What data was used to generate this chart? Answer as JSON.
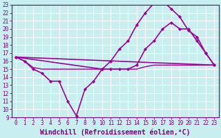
{
  "title": "",
  "xlabel": "Windchill (Refroidissement éolien,°C)",
  "ylabel": "",
  "xlim": [
    -0.5,
    23.5
  ],
  "ylim": [
    9,
    23
  ],
  "yticks": [
    9,
    10,
    11,
    12,
    13,
    14,
    15,
    16,
    17,
    18,
    19,
    20,
    21,
    22,
    23
  ],
  "xticks": [
    0,
    1,
    2,
    3,
    4,
    5,
    6,
    7,
    8,
    9,
    10,
    11,
    12,
    13,
    14,
    15,
    16,
    17,
    18,
    19,
    20,
    21,
    22,
    23
  ],
  "bg_color": "#c8eef0",
  "line_color": "#9b0097",
  "grid_color": "#ffffff",
  "lines": [
    {
      "x": [
        0,
        1,
        2,
        3,
        4,
        5,
        6,
        7,
        8,
        9,
        10,
        11,
        12,
        13,
        14,
        15,
        16,
        17,
        18,
        19,
        20,
        21,
        22,
        23
      ],
      "y": [
        16.5,
        16.0,
        15.2,
        15.0,
        15.0,
        15.0,
        15.0,
        15.0,
        15.0,
        15.0,
        15.0,
        15.0,
        15.0,
        15.0,
        15.0,
        15.3,
        15.5,
        15.5,
        15.5,
        15.5,
        15.5,
        15.5,
        15.5,
        15.5
      ],
      "marker": null,
      "lw": 1.0
    },
    {
      "x": [
        0,
        23
      ],
      "y": [
        16.5,
        15.5
      ],
      "marker": null,
      "lw": 1.2
    },
    {
      "x": [
        0,
        1,
        2,
        3,
        4,
        5,
        6,
        7,
        8,
        9,
        10,
        11,
        12,
        13,
        14,
        15,
        16,
        17,
        18,
        19,
        20,
        21,
        22,
        23
      ],
      "y": [
        16.5,
        16.0,
        15.0,
        14.5,
        13.5,
        13.5,
        11.0,
        9.2,
        12.5,
        13.5,
        15.0,
        15.0,
        15.0,
        15.0,
        15.5,
        17.5,
        18.5,
        20.0,
        20.8,
        20.0,
        20.0,
        18.5,
        17.0,
        15.5
      ],
      "marker": "D",
      "lw": 1.2
    },
    {
      "x": [
        0,
        10,
        11,
        12,
        13,
        14,
        15,
        16,
        17,
        18,
        19,
        20,
        21,
        22,
        23
      ],
      "y": [
        16.5,
        15.0,
        16.0,
        17.5,
        18.5,
        20.5,
        22.0,
        23.2,
        23.5,
        22.5,
        21.5,
        19.8,
        19.0,
        17.0,
        15.5
      ],
      "marker": "D",
      "lw": 1.2
    }
  ],
  "font_color": "#7b007b",
  "tick_fontsize": 5.5,
  "label_fontsize": 7.0
}
